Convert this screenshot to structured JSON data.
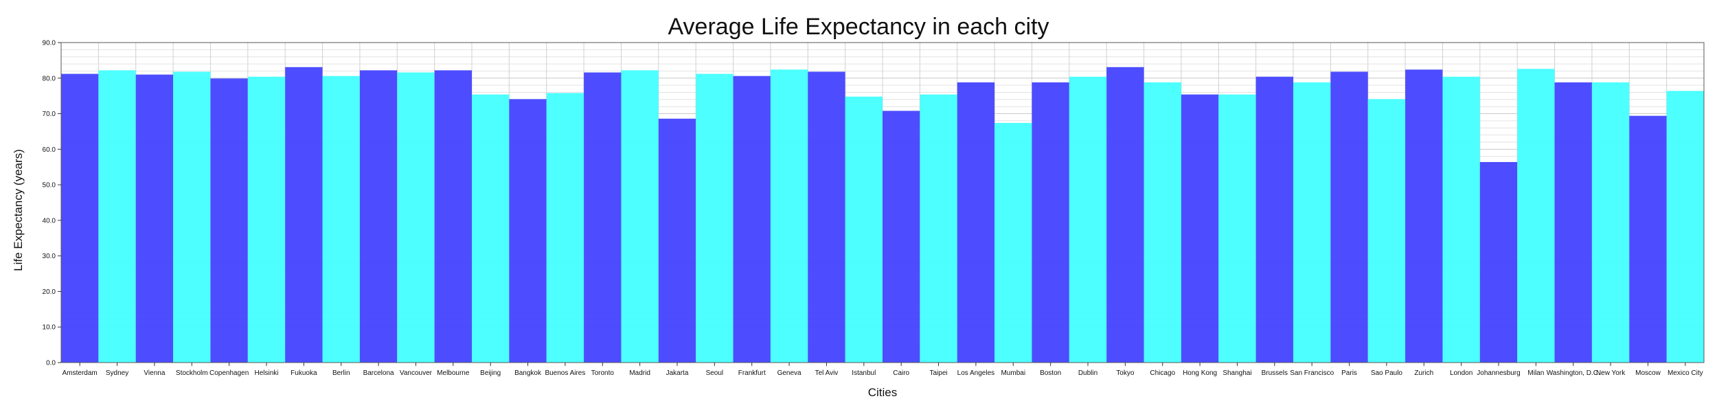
{
  "chart_data": {
    "type": "bar",
    "title": "Average Life Expectancy in each city",
    "xlabel": "Cities",
    "ylabel": "Life Expectancy (years)",
    "ylim": [
      0,
      90
    ],
    "ytick_labels": [
      "0.0",
      "10.0",
      "20.0",
      "30.0",
      "40.0",
      "50.0",
      "60.0",
      "70.0",
      "80.0",
      "90.0"
    ],
    "grid": true,
    "colors": [
      "#4747ff",
      "#47ffff"
    ],
    "categories": [
      "Amsterdam",
      "Sydney",
      "Vienna",
      "Stockholm",
      "Copenhagen",
      "Helsinki",
      "Fukuoka",
      "Berlin",
      "Barcelona",
      "Vancouver",
      "Melbourne",
      "Beijing",
      "Bangkok",
      "Buenos Aires",
      "Toronto",
      "Madrid",
      "Jakarta",
      "Seoul",
      "Frankfurt",
      "Geneva",
      "Tel Aviv",
      "Istanbul",
      "Cairo",
      "Taipei",
      "Los Angeles",
      "Mumbai",
      "Boston",
      "Dublin",
      "Tokyo",
      "Chicago",
      "Hong Kong",
      "Shanghai",
      "Brussels",
      "San Francisco",
      "Paris",
      "Sao Paulo",
      "Zurich",
      "London",
      "Johannesburg",
      "Milan",
      "Washington, D.C.",
      "New York",
      "Moscow",
      "Mexico City"
    ],
    "values": [
      81.2,
      82.2,
      81.0,
      81.8,
      79.9,
      80.4,
      83.1,
      80.6,
      82.2,
      81.6,
      82.2,
      75.4,
      74.1,
      75.8,
      81.6,
      82.2,
      68.6,
      81.2,
      80.6,
      82.4,
      81.8,
      74.8,
      70.8,
      75.4,
      78.8,
      67.4,
      78.8,
      80.4,
      83.1,
      78.8,
      75.4,
      75.4,
      80.4,
      78.8,
      81.8,
      74.1,
      82.4,
      80.4,
      56.4,
      82.6,
      78.8,
      78.8,
      69.4,
      76.4
    ]
  }
}
